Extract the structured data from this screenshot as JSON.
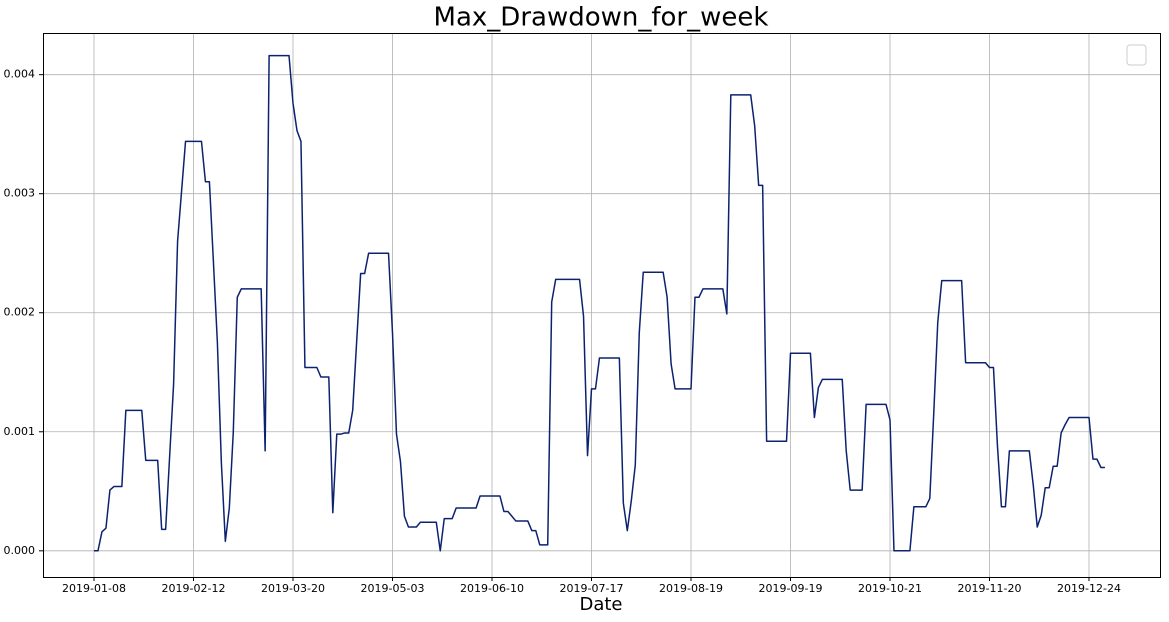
{
  "chart_data": {
    "type": "line",
    "title": "Max_Drawdown_for_week",
    "x_label": "Date",
    "categories": [
      "2019-01-08",
      null,
      null,
      null,
      null,
      null,
      null,
      null,
      null,
      null,
      null,
      null,
      null,
      null,
      null,
      null,
      null,
      null,
      null,
      null,
      null,
      null,
      null,
      null,
      null,
      "2019-02-12",
      null,
      null,
      null,
      null,
      null,
      null,
      null,
      null,
      null,
      null,
      null,
      null,
      null,
      null,
      null,
      null,
      null,
      null,
      null,
      null,
      null,
      null,
      null,
      null,
      "2019-03-20",
      null,
      null,
      null,
      null,
      null,
      null,
      null,
      null,
      null,
      null,
      null,
      null,
      null,
      null,
      null,
      null,
      null,
      null,
      null,
      null,
      null,
      null,
      null,
      null,
      "2019-05-03",
      null,
      null,
      null,
      null,
      null,
      null,
      null,
      null,
      null,
      null,
      null,
      null,
      null,
      null,
      null,
      null,
      null,
      null,
      null,
      null,
      null,
      null,
      null,
      null,
      "2019-06-10",
      null,
      null,
      null,
      null,
      null,
      null,
      null,
      null,
      null,
      null,
      null,
      null,
      null,
      null,
      null,
      null,
      null,
      null,
      null,
      null,
      null,
      null,
      null,
      null,
      "2019-07-17",
      null,
      null,
      null,
      null,
      null,
      null,
      null,
      null,
      null,
      null,
      null,
      null,
      null,
      null,
      null,
      null,
      null,
      null,
      null,
      null,
      null,
      null,
      null,
      null,
      "2019-08-19",
      null,
      null,
      null,
      null,
      null,
      null,
      null,
      null,
      null,
      null,
      null,
      null,
      null,
      null,
      null,
      null,
      null,
      null,
      null,
      null,
      null,
      null,
      null,
      null,
      "2019-09-19",
      null,
      null,
      null,
      null,
      null,
      null,
      null,
      null,
      null,
      null,
      null,
      null,
      null,
      null,
      null,
      null,
      null,
      null,
      null,
      null,
      null,
      null,
      null,
      null,
      "2019-10-21",
      null,
      null,
      null,
      null,
      null,
      null,
      null,
      null,
      null,
      null,
      null,
      null,
      null,
      null,
      null,
      null,
      null,
      null,
      null,
      null,
      null,
      null,
      null,
      null,
      "2019-11-20",
      null,
      null,
      null,
      null,
      null,
      null,
      null,
      null,
      null,
      null,
      null,
      null,
      null,
      null,
      null,
      null,
      null,
      null,
      null,
      null,
      null,
      null,
      null,
      null,
      "2019-12-24",
      null,
      null,
      null,
      null
    ],
    "values": [
      0,
      0,
      0.00016,
      0.00019,
      0.00051,
      0.00054,
      0.00054,
      0.00054,
      0.00118,
      0.00118,
      0.00118,
      0.00118,
      0.00118,
      0.00076,
      0.00076,
      0.00076,
      0.00076,
      0.00018,
      0.00018,
      0.00079,
      0.0014,
      0.0026,
      0.00302,
      0.00344,
      0.00344,
      0.00344,
      0.00344,
      0.00344,
      0.0031,
      0.0031,
      0.00243,
      0.00175,
      0.00074,
      8e-05,
      0.00036,
      0.001,
      0.00213,
      0.0022,
      0.0022,
      0.0022,
      0.0022,
      0.0022,
      0.0022,
      0.00084,
      0.00416,
      0.00416,
      0.00416,
      0.00416,
      0.00416,
      0.00416,
      0.00376,
      0.00353,
      0.00344,
      0.00154,
      0.00154,
      0.00154,
      0.00154,
      0.00146,
      0.00146,
      0.00146,
      0.00032,
      0.00098,
      0.00098,
      0.00099,
      0.00099,
      0.00118,
      0.00176,
      0.00233,
      0.00233,
      0.0025,
      0.0025,
      0.0025,
      0.0025,
      0.0025,
      0.0025,
      0.00183,
      0.00098,
      0.00075,
      0.00029,
      0.0002,
      0.0002,
      0.0002,
      0.00024,
      0.00024,
      0.00024,
      0.00024,
      0.00024,
      0,
      0.00027,
      0.00027,
      0.00027,
      0.00036,
      0.00036,
      0.00036,
      0.00036,
      0.00036,
      0.00036,
      0.00046,
      0.00046,
      0.00046,
      0.00046,
      0.00046,
      0.00046,
      0.00033,
      0.00033,
      0.00029,
      0.00025,
      0.00025,
      0.00025,
      0.00025,
      0.00017,
      0.00017,
      5e-05,
      5e-05,
      5e-05,
      0.00209,
      0.00228,
      0.00228,
      0.00228,
      0.00228,
      0.00228,
      0.00228,
      0.00228,
      0.00197,
      0.0008,
      0.00136,
      0.00136,
      0.00162,
      0.00162,
      0.00162,
      0.00162,
      0.00162,
      0.00162,
      0.0004,
      0.00017,
      0.00042,
      0.00072,
      0.00183,
      0.00234,
      0.00234,
      0.00234,
      0.00234,
      0.00234,
      0.00234,
      0.00213,
      0.00157,
      0.00136,
      0.00136,
      0.00136,
      0.00136,
      0.00136,
      0.00213,
      0.00213,
      0.0022,
      0.0022,
      0.0022,
      0.0022,
      0.0022,
      0.0022,
      0.00199,
      0.00383,
      0.00383,
      0.00383,
      0.00383,
      0.00383,
      0.00383,
      0.00357,
      0.00307,
      0.00307,
      0.00092,
      0.00092,
      0.00092,
      0.00092,
      0.00092,
      0.00092,
      0.00166,
      0.00166,
      0.00166,
      0.00166,
      0.00166,
      0.00166,
      0.00112,
      0.00137,
      0.00144,
      0.00144,
      0.00144,
      0.00144,
      0.00144,
      0.00144,
      0.00084,
      0.00051,
      0.00051,
      0.00051,
      0.00051,
      0.00123,
      0.00123,
      0.00123,
      0.00123,
      0.00123,
      0.00123,
      0.0011,
      0,
      0,
      0,
      0,
      0,
      0.00037,
      0.00037,
      0.00037,
      0.00037,
      0.00044,
      0.00116,
      0.00192,
      0.00227,
      0.00227,
      0.00227,
      0.00227,
      0.00227,
      0.00227,
      0.00158,
      0.00158,
      0.00158,
      0.00158,
      0.00158,
      0.00158,
      0.00154,
      0.00154,
      0.00088,
      0.00037,
      0.00037,
      0.00084,
      0.00084,
      0.00084,
      0.00084,
      0.00084,
      0.00084,
      0.00055,
      0.0002,
      0.0003,
      0.00053,
      0.00053,
      0.00071,
      0.00071,
      0.00099,
      0.00106,
      0.00112,
      0.00112,
      0.00112,
      0.00112,
      0.00112,
      0.00112,
      0.00077,
      0.00077,
      0.0007,
      0.0007
    ],
    "color": "#0c2270",
    "ylim": [
      -0.00022,
      0.00435
    ],
    "yticks": [
      {
        "value": 0,
        "label": "0.000"
      },
      {
        "value": 0.001,
        "label": "0.001"
      },
      {
        "value": 0.002,
        "label": "0.002"
      },
      {
        "value": 0.003,
        "label": "0.003"
      },
      {
        "value": 0.004,
        "label": "0.004"
      }
    ],
    "grid": true
  }
}
